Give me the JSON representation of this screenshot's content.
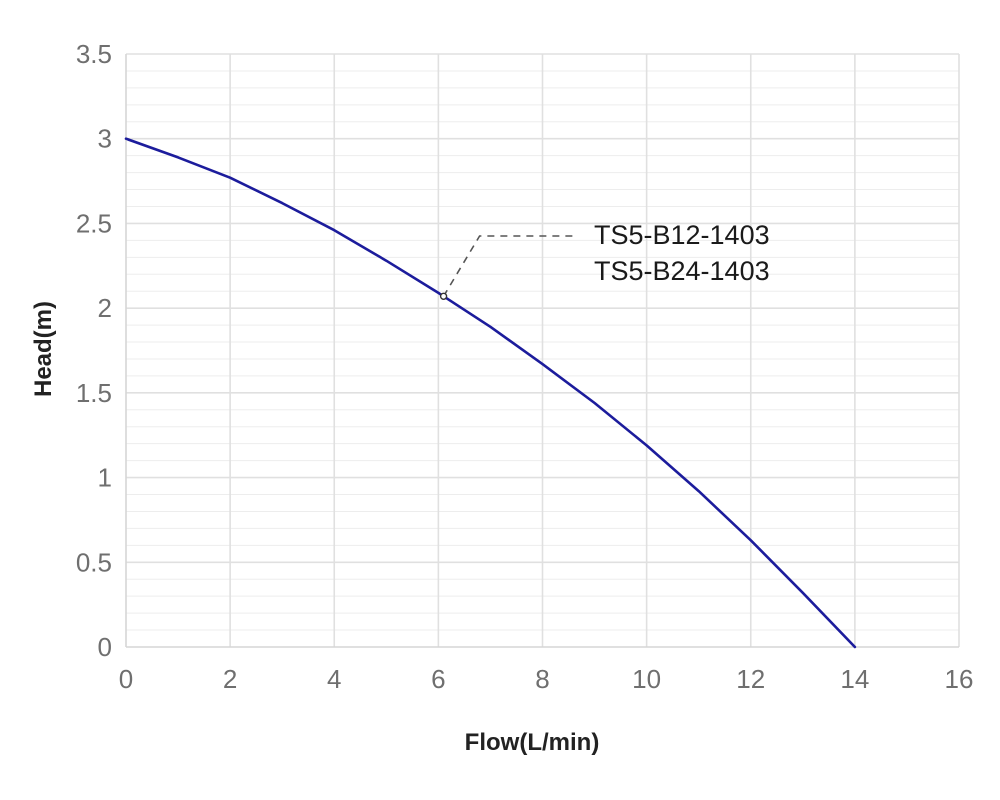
{
  "chart_data": {
    "type": "line",
    "title": "",
    "xlabel": "Flow(L/min)",
    "ylabel": "Head(m)",
    "xlim": [
      0,
      16
    ],
    "ylim": [
      0,
      3.5
    ],
    "x_ticks": [
      "0",
      "2",
      "4",
      "6",
      "8",
      "10",
      "12",
      "14",
      "16"
    ],
    "y_ticks": [
      "0",
      "0.5",
      "1",
      "1.5",
      "2",
      "2.5",
      "3",
      "3.5"
    ],
    "grid": true,
    "series": [
      {
        "color": "#1c1c9c",
        "x": [
          0,
          1,
          2,
          3,
          4,
          5,
          6,
          6.1,
          7,
          8,
          9,
          10,
          11,
          12,
          13,
          14
        ],
        "y": [
          3.0,
          2.89,
          2.77,
          2.62,
          2.46,
          2.28,
          2.09,
          2.07,
          1.89,
          1.67,
          1.44,
          1.19,
          0.92,
          0.63,
          0.32,
          0.0
        ]
      }
    ],
    "annotation": {
      "lines": [
        "TS5-B12-1403",
        "TS5-B24-1403"
      ],
      "point": {
        "x": 6.1,
        "y": 2.07
      }
    }
  }
}
